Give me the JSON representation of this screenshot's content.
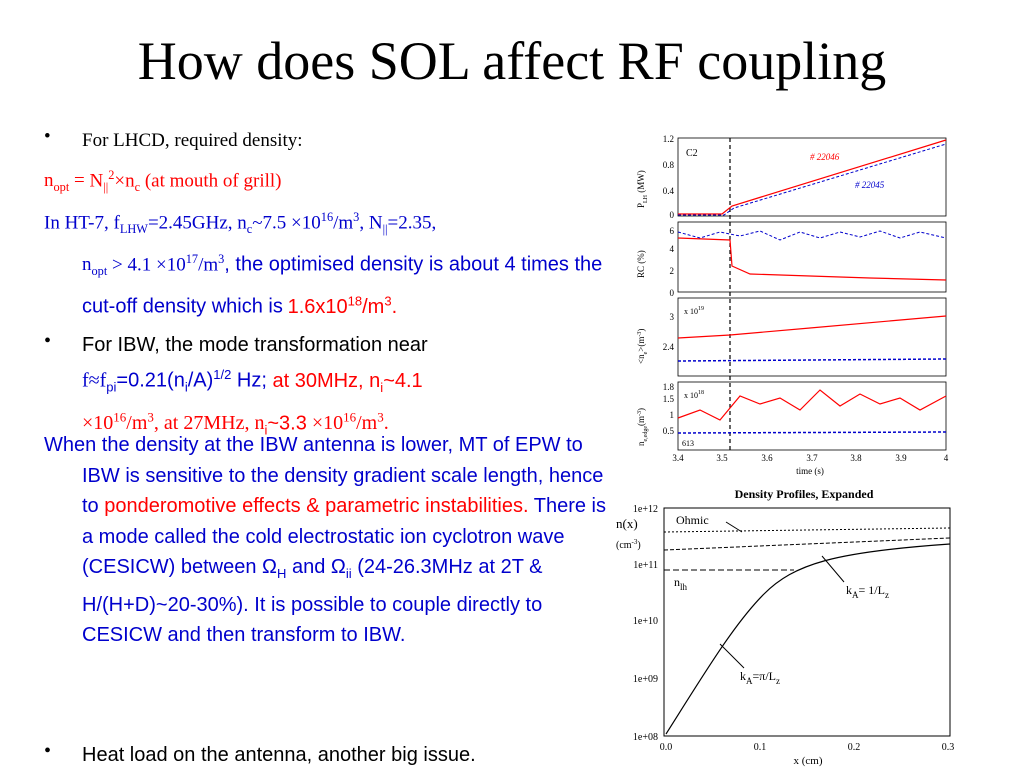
{
  "title": "How does SOL affect RF coupling",
  "lhcd": {
    "bullet": "For LHCD, required density:",
    "n_opt_eq": "N",
    "n_opt_mouth": "(at mouth of grill)",
    "ht7_a": "In HT-7, f",
    "ht7_b": "=2.45GHz, n",
    "ht7_c": "~7.5 ×10",
    "ht7_d": "/m",
    "ht7_e": ", N",
    "ht7_f": "=2.35,",
    "nopt_val": "> 4.1 ×10",
    "optim": ", the optimised density is about 4 times the cut-off density which is",
    "optim_val": "1.6x10",
    "optim_unit": "/m"
  },
  "ibw": {
    "l1": "For IBW, the mode transformation near",
    "l2a": "f≈f",
    "l2b": "=0.21(n",
    "l2c": "/A)",
    "l2d": "Hz;",
    "l2e": "at 30MHz, n",
    "l2f": "~4.1",
    "l3a": "×10",
    "l3b": "/m",
    "l3c": ", at 27MHz, n",
    "l3d": "~3.3",
    "l3e": "×10",
    "l3f": "/m",
    "p1": "When the density at the IBW antenna is lower, MT of EPW to IBW is sensitive to the density gradient scale length, hence to",
    "p2": "ponderomotive effects & parametric instabilities.",
    "p3": "There is a mode called the cold electrostatic ion cyclotron wave (CESICW) between Ω",
    "p4": "and Ω",
    "p5": "(24-26.3MHz at 2T & H/(H+D)~20-30%). It is possible to couple directly to CESICW and then transform to IBW.",
    "heat": "Heat load on the antenna, another big issue."
  },
  "fig1": {
    "panel1_label": "C2",
    "shot_a": "# 22046",
    "shot_b": "# 22045",
    "ylabels": [
      "P",
      "RC (%)",
      "<n",
      "n"
    ],
    "exp1": "x 10",
    "exp2": "x 10",
    "shot_c": "613",
    "xticks": [
      "3.4",
      "3.5",
      "3.6",
      "3.7",
      "3.8",
      "3.9",
      "4"
    ],
    "xlabel": "time (s)",
    "p1_ticks": [
      "1.2",
      "0.8",
      "0.4",
      "0"
    ],
    "p2_ticks": [
      "6",
      "4",
      "2",
      "0"
    ],
    "p3_ticks": [
      "3",
      "2.4"
    ],
    "p4_ticks": [
      "1.8",
      "1.5",
      "1",
      "0.5"
    ]
  },
  "fig2": {
    "title": "Density Profiles, Expanded",
    "ylabel": "n(x)",
    "yunit": "(cm",
    "yticks": [
      "1e+12",
      "1e+11",
      "1e+10",
      "1e+09",
      "1e+08"
    ],
    "xticks": [
      "0.0",
      "0.1",
      "0.2",
      "0.3"
    ],
    "xlabel": "x (cm)",
    "ohmic": "Ohmic",
    "nlh": "n",
    "ka1": "k",
    "ka1_rhs": "= 1/L",
    "ka2": "k",
    "ka2_rhs": "=π/L"
  },
  "colors": {
    "text_blue": "#0000cc",
    "text_red": "#ff0000",
    "text_black": "#000000"
  }
}
